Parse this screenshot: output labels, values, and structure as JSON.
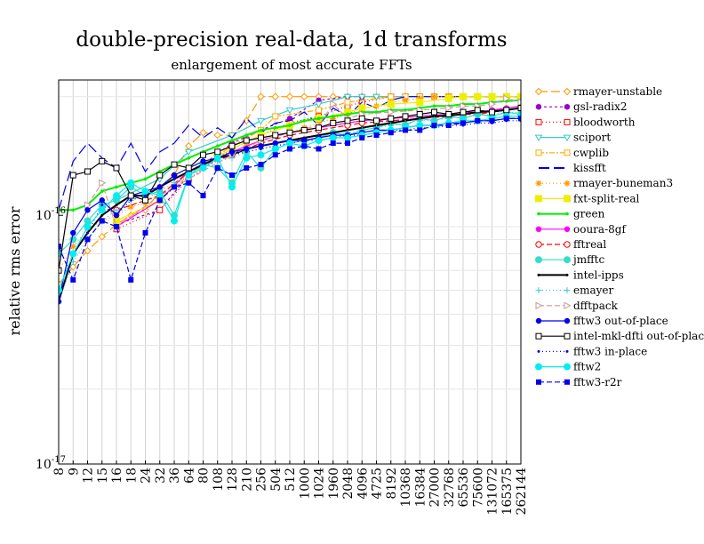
{
  "chart_data": {
    "type": "line",
    "title": "double-precision real-data, 1d transforms",
    "subtitle": "enlargement of most accurate FFTs",
    "ylabel": "relative rms error",
    "xlabel": "",
    "yscale": "log",
    "ylim": [
      1e-17,
      3.5e-16
    ],
    "ytick_labels": [
      {
        "value": 1e-16,
        "mantissa": "10",
        "exp": "-16"
      },
      {
        "value": 1e-17,
        "mantissa": "10",
        "exp": "-17"
      }
    ],
    "categories": [
      "8",
      "9",
      "12",
      "15",
      "16",
      "18",
      "24",
      "32",
      "36",
      "64",
      "80",
      "108",
      "128",
      "210",
      "256",
      "504",
      "512",
      "1000",
      "1024",
      "1960",
      "2048",
      "4096",
      "4725",
      "8192",
      "10368",
      "16384",
      "27000",
      "32768",
      "65536",
      "75600",
      "131072",
      "165375",
      "262144"
    ],
    "grid": true,
    "legend_position": "right",
    "series": [
      {
        "name": "rmayer-unstable",
        "color": "#ff9900",
        "dash": "10,4",
        "marker": "diamond-open",
        "values": [
          0.53,
          0.62,
          0.72,
          0.82,
          0.92,
          1.0,
          1.05,
          1.25,
          1.45,
          1.9,
          2.15,
          2.1,
          2.1,
          2.4,
          3.0,
          3.0,
          3.0,
          3.0,
          3.0,
          3.0,
          3.0,
          3.0,
          3.0,
          3.0,
          3.0,
          3.0,
          3.0,
          3.0,
          3.0,
          3.0,
          3.0,
          3.0,
          3.0
        ]
      },
      {
        "name": "gsl-radix2",
        "color": "#9900cc",
        "dash": "3,3",
        "marker": "circle-filled",
        "values": [
          null,
          null,
          null,
          null,
          0.92,
          null,
          null,
          1.05,
          null,
          1.45,
          null,
          null,
          1.95,
          null,
          2.2,
          null,
          2.45,
          null,
          2.9,
          null,
          3.0,
          3.0,
          null,
          null,
          null,
          null,
          null,
          null,
          null,
          null,
          null,
          null,
          null
        ]
      },
      {
        "name": "bloodworth",
        "color": "#ff0000",
        "dash": "1,3",
        "marker": "square-open",
        "values": [
          null,
          null,
          null,
          null,
          0.88,
          null,
          null,
          1.05,
          null,
          1.4,
          null,
          null,
          1.85,
          null,
          2.1,
          null,
          2.35,
          null,
          2.5,
          null,
          2.75,
          2.85,
          null,
          3.0,
          3.0,
          3.0,
          3.0,
          3.0,
          3.0,
          3.0,
          3.0,
          3.0,
          3.0
        ]
      },
      {
        "name": "sciport",
        "color": "#33cccc",
        "dash": "",
        "marker": "tri-down-open",
        "values": [
          null,
          null,
          null,
          null,
          1.15,
          null,
          null,
          1.4,
          null,
          1.8,
          null,
          null,
          2.1,
          null,
          2.4,
          null,
          2.65,
          null,
          2.8,
          null,
          3.0,
          3.0,
          3.0,
          3.0,
          3.0,
          3.0,
          3.0,
          3.0,
          3.0,
          3.0,
          3.0,
          3.0,
          3.0
        ]
      },
      {
        "name": "cwplib",
        "color": "#ffaa00",
        "dash": "6,2,2,2",
        "marker": "square-open",
        "values": [
          null,
          null,
          null,
          null,
          0.95,
          null,
          null,
          1.15,
          null,
          1.45,
          null,
          null,
          1.9,
          null,
          2.2,
          2.5,
          null,
          null,
          2.65,
          null,
          2.85,
          null,
          null,
          3.0,
          3.0,
          3.0,
          3.0,
          3.0,
          3.0,
          3.0,
          3.0,
          3.0,
          3.0
        ]
      },
      {
        "name": "kissfft",
        "color": "#0000ee",
        "dash": "12,5",
        "marker": "none",
        "values": [
          1.05,
          1.65,
          1.95,
          1.7,
          1.55,
          1.95,
          1.5,
          1.8,
          1.95,
          2.3,
          2.05,
          2.25,
          2.05,
          2.45,
          2.15,
          2.35,
          2.4,
          2.6,
          2.3,
          2.7,
          2.5,
          2.85,
          2.7,
          2.9,
          3.0,
          3.0,
          3.0,
          3.0,
          3.0,
          3.0,
          3.0,
          3.0,
          3.0
        ]
      },
      {
        "name": "rmayer-buneman3",
        "color": "#ff9900",
        "dash": "1,3",
        "marker": "star",
        "values": [
          0.6,
          0.75,
          0.88,
          0.95,
          1.0,
          1.08,
          1.12,
          1.3,
          1.45,
          1.55,
          1.6,
          1.78,
          1.75,
          1.9,
          2.0,
          2.1,
          2.15,
          2.25,
          2.35,
          2.45,
          2.55,
          2.7,
          2.75,
          2.85,
          2.9,
          2.95,
          3.0,
          3.0,
          3.0,
          3.0,
          3.0,
          3.0,
          3.0
        ]
      },
      {
        "name": "fxt-split-real",
        "color": "#eeee00",
        "dash": "",
        "marker": "square-filled",
        "values": [
          null,
          null,
          null,
          null,
          0.95,
          null,
          null,
          1.15,
          null,
          1.5,
          null,
          null,
          1.85,
          null,
          2.1,
          null,
          2.3,
          null,
          2.45,
          null,
          2.6,
          2.7,
          null,
          2.8,
          null,
          2.85,
          null,
          2.95,
          3.0,
          3.0,
          3.0,
          3.0,
          3.0
        ]
      },
      {
        "name": "green",
        "color": "#00ee00",
        "dash": "",
        "marker": "circle-small",
        "values": [
          1.05,
          1.05,
          1.1,
          1.25,
          1.3,
          1.35,
          1.4,
          1.5,
          1.6,
          1.7,
          1.8,
          1.9,
          2.0,
          2.1,
          2.2,
          2.25,
          2.3,
          2.4,
          2.45,
          2.5,
          2.55,
          2.6,
          2.6,
          2.65,
          2.65,
          2.7,
          2.75,
          2.75,
          2.8,
          2.8,
          2.85,
          2.88,
          2.9
        ]
      },
      {
        "name": "ooura-8gf",
        "color": "#ff00ff",
        "dash": "",
        "marker": "circle-filled",
        "values": [
          null,
          null,
          null,
          null,
          0.9,
          null,
          null,
          1.15,
          null,
          1.5,
          null,
          null,
          1.8,
          null,
          2.0,
          null,
          2.15,
          null,
          2.25,
          null,
          2.35,
          2.4,
          null,
          2.45,
          null,
          2.5,
          null,
          2.55,
          2.6,
          2.6,
          2.65,
          2.7,
          2.75
        ]
      },
      {
        "name": "fftreal",
        "color": "#ff0000",
        "dash": "6,3",
        "marker": "circle-open",
        "values": [
          null,
          null,
          null,
          null,
          1.05,
          null,
          null,
          1.2,
          null,
          1.5,
          null,
          null,
          1.75,
          null,
          1.95,
          null,
          2.1,
          null,
          2.2,
          null,
          2.3,
          2.35,
          null,
          2.4,
          null,
          2.45,
          null,
          2.5,
          2.55,
          2.55,
          2.6,
          2.65,
          2.7
        ]
      },
      {
        "name": "jmfftc",
        "color": "#33ddcc",
        "dash": "",
        "marker": "circle-filled-big",
        "values": [
          0.7,
          0.8,
          0.95,
          1.1,
          1.15,
          1.3,
          1.2,
          1.25,
          1.0,
          1.45,
          1.6,
          1.55,
          1.35,
          1.8,
          1.55,
          1.85,
          1.95,
          2.0,
          2.05,
          2.15,
          2.1,
          2.2,
          2.25,
          2.35,
          2.3,
          2.45,
          2.4,
          2.5,
          2.45,
          2.55,
          2.5,
          2.6,
          2.55
        ]
      },
      {
        "name": "intel-ipps",
        "color": "#000000",
        "dash": "",
        "marker": "dot",
        "values": [
          0.45,
          0.7,
          0.85,
          1.0,
          1.1,
          1.2,
          1.2,
          1.3,
          1.4,
          1.5,
          1.6,
          1.7,
          1.75,
          1.85,
          1.9,
          1.95,
          2.0,
          2.05,
          2.1,
          2.15,
          2.2,
          2.25,
          2.3,
          2.35,
          2.4,
          2.45,
          2.5,
          2.52,
          2.55,
          2.6,
          2.62,
          2.65,
          2.7
        ]
      },
      {
        "name": "emayer",
        "color": "#33cccc",
        "dash": "1,3",
        "marker": "plus",
        "values": [
          0.45,
          0.65,
          0.8,
          0.95,
          1.05,
          1.15,
          1.2,
          1.25,
          1.35,
          1.45,
          1.55,
          1.65,
          1.7,
          1.8,
          1.85,
          1.9,
          1.95,
          2.0,
          2.05,
          2.1,
          2.15,
          2.2,
          2.25,
          2.3,
          2.35,
          2.4,
          2.42,
          2.45,
          2.5,
          2.52,
          2.55,
          2.58,
          2.6
        ]
      },
      {
        "name": "dfftpack",
        "color": "#cc9999",
        "dash": "6,3",
        "marker": "tri-right-open",
        "values": [
          null,
          null,
          1.1,
          1.35,
          0.9,
          null,
          null,
          1.2,
          null,
          1.4,
          null,
          null,
          1.75,
          null,
          2.0,
          null,
          2.15,
          null,
          2.3,
          2.8,
          2.45,
          2.55,
          null,
          2.6,
          null,
          2.65,
          null,
          2.7,
          2.75,
          2.75,
          2.8,
          2.95,
          2.85
        ]
      },
      {
        "name": "fftw3 out-of-place",
        "color": "#0000ee",
        "dash": "",
        "marker": "circle-filled",
        "values": [
          0.45,
          0.85,
          1.05,
          1.15,
          1.0,
          1.2,
          1.25,
          1.3,
          1.45,
          1.55,
          1.65,
          1.7,
          1.8,
          1.85,
          1.9,
          1.95,
          2.0,
          2.0,
          2.05,
          2.1,
          2.1,
          2.15,
          2.2,
          2.2,
          2.25,
          2.3,
          2.3,
          2.35,
          2.35,
          2.4,
          2.4,
          2.45,
          2.45
        ]
      },
      {
        "name": "intel-mkl-dfti out-of-place",
        "color": "#000000",
        "dash": "",
        "marker": "square-open",
        "values": [
          0.6,
          1.45,
          1.5,
          1.65,
          1.55,
          1.2,
          1.15,
          1.45,
          1.6,
          1.55,
          1.75,
          1.8,
          1.9,
          2.0,
          2.05,
          2.1,
          2.15,
          2.2,
          2.25,
          2.35,
          2.4,
          2.45,
          2.4,
          2.45,
          2.5,
          2.55,
          2.6,
          2.55,
          2.6,
          2.65,
          2.6,
          2.65,
          2.7
        ]
      },
      {
        "name": "fftw3 in-place",
        "color": "#0000ee",
        "dash": "1,3",
        "marker": "dot",
        "values": [
          0.45,
          0.7,
          0.85,
          1.1,
          1.0,
          1.15,
          1.2,
          1.3,
          1.4,
          1.5,
          1.6,
          1.7,
          1.75,
          1.8,
          1.85,
          1.9,
          1.95,
          2.0,
          2.0,
          2.05,
          2.1,
          2.1,
          2.15,
          2.2,
          2.2,
          2.25,
          2.25,
          2.3,
          2.3,
          2.35,
          2.35,
          2.4,
          2.4
        ]
      },
      {
        "name": "fftw2",
        "color": "#00eeee",
        "dash": "",
        "marker": "circle-filled-big",
        "values": [
          0.5,
          0.7,
          0.9,
          1.05,
          1.2,
          1.35,
          1.25,
          1.2,
          0.95,
          1.45,
          1.55,
          1.7,
          1.3,
          1.7,
          1.75,
          1.85,
          1.95,
          1.9,
          2.0,
          2.05,
          2.05,
          2.1,
          2.15,
          2.2,
          2.25,
          2.3,
          2.3,
          2.35,
          2.4,
          2.4,
          2.45,
          2.5,
          2.5
        ]
      },
      {
        "name": "fftw3-r2r",
        "color": "#0000ee",
        "dash": "6,3",
        "marker": "square-filled-small",
        "values": [
          0.75,
          0.55,
          0.8,
          0.95,
          0.9,
          0.55,
          0.85,
          1.15,
          1.3,
          1.35,
          1.2,
          1.55,
          1.45,
          1.55,
          1.6,
          1.75,
          1.85,
          1.9,
          1.85,
          1.95,
          1.95,
          2.05,
          2.1,
          2.15,
          2.2,
          2.2,
          2.3,
          2.3,
          2.35,
          2.4,
          2.4,
          2.45,
          2.45
        ]
      }
    ]
  }
}
